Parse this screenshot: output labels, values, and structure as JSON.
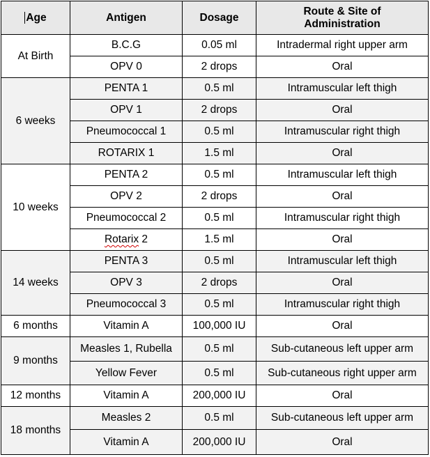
{
  "headers": {
    "age": "Age",
    "antigen": "Antigen",
    "dosage": "Dosage",
    "route": "Route & Site of Administration"
  },
  "groups": [
    {
      "age": "At Birth",
      "shade": "w",
      "rows": [
        {
          "antigen": "B.C.G",
          "dosage": "0.05 ml",
          "route": "Intradermal right upper arm"
        },
        {
          "antigen": "OPV 0",
          "dosage": "2 drops",
          "route": "Oral"
        }
      ]
    },
    {
      "age": "6 weeks",
      "shade": "g",
      "rows": [
        {
          "antigen": "PENTA 1",
          "dosage": "0.5 ml",
          "route": "Intramuscular left thigh"
        },
        {
          "antigen": "OPV  1",
          "dosage": "2 drops",
          "route": "Oral"
        },
        {
          "antigen": "Pneumococcal 1",
          "dosage": "0.5 ml",
          "route": "Intramuscular right thigh"
        },
        {
          "antigen": "ROTARIX 1",
          "dosage": "1.5 ml",
          "route": "Oral"
        }
      ]
    },
    {
      "age": "10 weeks",
      "shade": "w",
      "rows": [
        {
          "antigen": "PENTA 2",
          "dosage": "0.5 ml",
          "route": "Intramuscular left thigh"
        },
        {
          "antigen": "OPV 2",
          "dosage": "2 drops",
          "route": "Oral"
        },
        {
          "antigen": "Pneumococcal 2",
          "dosage": "0.5 ml",
          "route": "Intramuscular right thigh"
        },
        {
          "antigen": "Rotarix 2",
          "dosage": "1.5 ml",
          "route": "Oral",
          "spell": "Rotarix"
        }
      ]
    },
    {
      "age": "14 weeks",
      "shade": "g",
      "rows": [
        {
          "antigen": "PENTA 3",
          "dosage": "0.5 ml",
          "route": "Intramuscular left thigh"
        },
        {
          "antigen": "OPV 3",
          "dosage": "2 drops",
          "route": "Oral"
        },
        {
          "antigen": "Pneumococcal 3",
          "dosage": "0.5 ml",
          "route": "Intramuscular right thigh"
        }
      ]
    },
    {
      "age": "6 months",
      "shade": "w",
      "rows": [
        {
          "antigen": "Vitamin A",
          "dosage": "100,000 IU",
          "route": "Oral"
        }
      ]
    },
    {
      "age": "9 months",
      "shade": "g",
      "rows": [
        {
          "antigen": "Measles 1, Rubella",
          "dosage": "0.5 ml",
          "route": "Sub-cutaneous left upper arm"
        },
        {
          "antigen": "Yellow Fever",
          "dosage": "0.5 ml",
          "route": "Sub-cutaneous right upper arm"
        }
      ]
    },
    {
      "age": "12 months",
      "shade": "w",
      "rows": [
        {
          "antigen": "Vitamin A",
          "dosage": "200,000 IU",
          "route": "Oral"
        }
      ]
    },
    {
      "age": "18 months",
      "shade": "g",
      "rows": [
        {
          "antigen": "Measles 2",
          "dosage": "0.5 ml",
          "route": "Sub-cutaneous left upper arm"
        },
        {
          "antigen": "Vitamin A",
          "dosage": "200,000 IU",
          "route": "Oral"
        }
      ]
    }
  ]
}
